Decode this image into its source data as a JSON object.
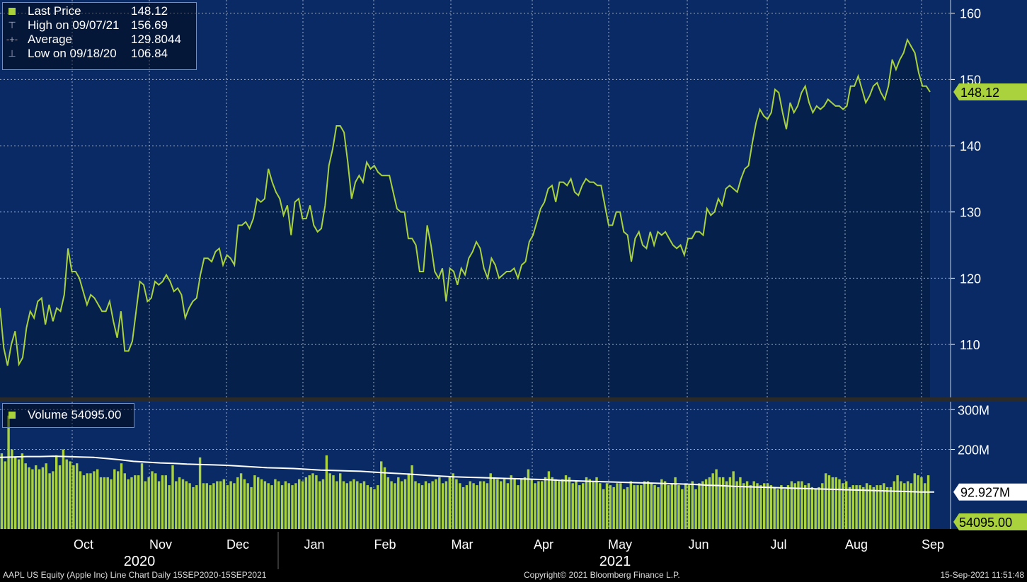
{
  "colors": {
    "price_line": "#a9d23c",
    "volume_bar": "#a9d23c",
    "avg_line": "#ffffff",
    "panel_bg": "#0a2a66",
    "area_fill": "#05204a",
    "grid": "#cfd8e6",
    "label_box": "#a9d23c"
  },
  "legend": {
    "items": [
      {
        "symbol": "square-icon",
        "label": "Last Price",
        "value": "148.12"
      },
      {
        "symbol": "high-marker-icon",
        "label": "High on 09/07/21",
        "value": "156.69"
      },
      {
        "symbol": "average-marker-icon",
        "label": "Average",
        "value": "129.8044"
      },
      {
        "symbol": "low-marker-icon",
        "label": "Low on 09/18/20",
        "value": "106.84"
      }
    ]
  },
  "volume_legend": {
    "label": "Volume",
    "value": "54095.00"
  },
  "footer": {
    "left": "AAPL US Equity (Apple Inc) Line Chart  Daily 15SEP2020-15SEP2021",
    "middle": "Copyright© 2021 Bloomberg Finance L.P.",
    "right": "15-Sep-2021 11:51:48"
  },
  "chart_data": [
    {
      "type": "area",
      "series": [
        {
          "name": "Last Price",
          "values": [
            115.5,
            109.5,
            106.8,
            110.0,
            112.0,
            107.0,
            108.0,
            112.5,
            115.0,
            114.0,
            116.5,
            117.0,
            113.0,
            116.0,
            113.5,
            115.5,
            115.0,
            117.5,
            124.5,
            121.0,
            121.0,
            120.0,
            118.0,
            116.0,
            117.5,
            117.0,
            116.0,
            115.0,
            115.0,
            116.5,
            113.5,
            111.0,
            115.0,
            109.0,
            109.0,
            110.5,
            115.0,
            119.5,
            119.0,
            116.5,
            117.0,
            119.5,
            119.0,
            119.5,
            120.5,
            119.5,
            118.0,
            118.5,
            117.5,
            114.0,
            115.5,
            116.5,
            117.0,
            120.5,
            123.0,
            123.0,
            122.5,
            124.0,
            124.5,
            122.0,
            123.5,
            123.0,
            122.0,
            128.0,
            128.0,
            128.5,
            127.5,
            129.0,
            132.0,
            131.5,
            132.0,
            136.5,
            134.5,
            133.0,
            132.0,
            129.5,
            131.0,
            126.5,
            131.5,
            132.0,
            129.0,
            129.0,
            131.0,
            128.0,
            127.0,
            127.5,
            131.0,
            137.0,
            139.5,
            143.0,
            143.0,
            142.0,
            137.5,
            132.0,
            134.5,
            135.5,
            134.5,
            137.5,
            136.5,
            137.0,
            136.0,
            135.5,
            135.5,
            135.5,
            133.0,
            130.5,
            130.0,
            130.0,
            126.0,
            126.0,
            125.0,
            121.0,
            121.0,
            128.0,
            125.0,
            121.0,
            120.0,
            121.5,
            116.5,
            121.5,
            121.0,
            119.0,
            121.5,
            120.5,
            123.0,
            124.0,
            125.5,
            124.5,
            121.5,
            120.0,
            123.0,
            122.0,
            120.0,
            120.5,
            121.0,
            121.0,
            121.5,
            120.0,
            122.0,
            122.5,
            125.5,
            126.5,
            128.5,
            130.5,
            131.5,
            133.5,
            134.0,
            131.5,
            134.5,
            134.5,
            134.0,
            135.0,
            133.0,
            132.5,
            134.0,
            135.0,
            134.5,
            134.5,
            134.0,
            134.0,
            131.0,
            128.0,
            128.0,
            130.0,
            130.0,
            127.0,
            126.5,
            122.5,
            126.0,
            127.0,
            125.0,
            124.5,
            127.0,
            125.0,
            127.0,
            126.5,
            127.0,
            126.0,
            125.0,
            124.5,
            125.0,
            123.5,
            126.0,
            126.0,
            127.0,
            127.0,
            126.5,
            130.5,
            129.5,
            130.0,
            132.0,
            131.0,
            133.5,
            134.0,
            133.5,
            133.0,
            135.0,
            136.5,
            137.0,
            140.5,
            143.5,
            145.5,
            144.5,
            144.0,
            145.0,
            148.5,
            148.0,
            145.0,
            142.5,
            146.5,
            145.0,
            146.0,
            148.0,
            149.0,
            146.5,
            145.0,
            146.0,
            145.5,
            146.0,
            147.0,
            146.5,
            146.0,
            146.0,
            145.5,
            146.0,
            149.0,
            149.0,
            150.5,
            148.5,
            146.5,
            147.5,
            149.0,
            149.5,
            148.0,
            147.0,
            149.0,
            153.0,
            151.5,
            153.0,
            154.0,
            156.0,
            155.0,
            154.0,
            151.0,
            149.0,
            149.0,
            148.12
          ]
        }
      ],
      "x_labels": [
        "Oct",
        "Nov",
        "Dec",
        "Jan",
        "Feb",
        "Mar",
        "Apr",
        "May",
        "Jun",
        "Jul",
        "Aug",
        "Sep"
      ],
      "year_labels": [
        "2020",
        "2021"
      ],
      "ylim": [
        102,
        162
      ],
      "y_ticks": [
        "110",
        "120",
        "130",
        "140",
        "150",
        "160"
      ],
      "last_value_label": "148.12",
      "grid": true
    },
    {
      "type": "bar",
      "series": [
        {
          "name": "Volume",
          "values": [
            190,
            170,
            285,
            200,
            180,
            175,
            190,
            165,
            155,
            150,
            160,
            150,
            155,
            165,
            140,
            145,
            185,
            160,
            200,
            175,
            170,
            160,
            165,
            145,
            135,
            140,
            140,
            145,
            150,
            130,
            130,
            130,
            125,
            150,
            145,
            165,
            140,
            125,
            130,
            135,
            135,
            165,
            120,
            130,
            145,
            140,
            120,
            135,
            135,
            110,
            160,
            120,
            130,
            125,
            120,
            115,
            105,
            110,
            180,
            115,
            115,
            110,
            115,
            120,
            120,
            125,
            110,
            120,
            115,
            130,
            140,
            125,
            115,
            105,
            135,
            130,
            125,
            120,
            115,
            110,
            125,
            120,
            110,
            120,
            115,
            110,
            115,
            125,
            120,
            130,
            135,
            140,
            135,
            120,
            125,
            185,
            140,
            135,
            120,
            140,
            120,
            115,
            120,
            125,
            120,
            115,
            120,
            110,
            105,
            100,
            110,
            170,
            155,
            130,
            120,
            115,
            130,
            120,
            125,
            140,
            160,
            120,
            115,
            110,
            120,
            115,
            120,
            125,
            130,
            115,
            120,
            130,
            140,
            125,
            115,
            105,
            110,
            120,
            115,
            110,
            120,
            120,
            115,
            140,
            130,
            125,
            120,
            125,
            115,
            135,
            125,
            110,
            125,
            130,
            150,
            125,
            115,
            120,
            120,
            130,
            145,
            130,
            125,
            120,
            125,
            135,
            130,
            115,
            120,
            110,
            115,
            130,
            125,
            120,
            130,
            115,
            100,
            115,
            110,
            105,
            115,
            115,
            100,
            105,
            120,
            110,
            110,
            110,
            120,
            120,
            115,
            110,
            105,
            125,
            120,
            110,
            115,
            130,
            110,
            100,
            115,
            110,
            120,
            100,
            115,
            120,
            125,
            130,
            140,
            150,
            130,
            130,
            120,
            130,
            145,
            120,
            130,
            115,
            120,
            110,
            120,
            115,
            110,
            115,
            115,
            110,
            105,
            100,
            110,
            100,
            110,
            120,
            115,
            120,
            120,
            110,
            115,
            105,
            100,
            105,
            115,
            140,
            135,
            130,
            130,
            125,
            115,
            120,
            105,
            110,
            110,
            110,
            105,
            115,
            110,
            105,
            110,
            110,
            115,
            105,
            105,
            120,
            135,
            120,
            115,
            120,
            115,
            140,
            135,
            130,
            115,
            135
          ]
        },
        {
          "name": "Average",
          "values": [
            180,
            181,
            182,
            182,
            183,
            182,
            181,
            180,
            177,
            174,
            170,
            168,
            166,
            165,
            163,
            162,
            161,
            160,
            158,
            156,
            154,
            153,
            152,
            150,
            148,
            147,
            146,
            145,
            143,
            141,
            139,
            137,
            135,
            133,
            131,
            130,
            129,
            128,
            127,
            126,
            125,
            124,
            122,
            121,
            120,
            119,
            118,
            117,
            116,
            115,
            114,
            113,
            112,
            110,
            109,
            107,
            106,
            105,
            104,
            103,
            102,
            101,
            100,
            99,
            98,
            97,
            96,
            95,
            94,
            93,
            92.927
          ]
        }
      ],
      "ylim": [
        0,
        320
      ],
      "y_ticks": [
        "300M",
        "200M"
      ],
      "average_label": "92.927M",
      "last_value_label": "54095.00"
    }
  ]
}
